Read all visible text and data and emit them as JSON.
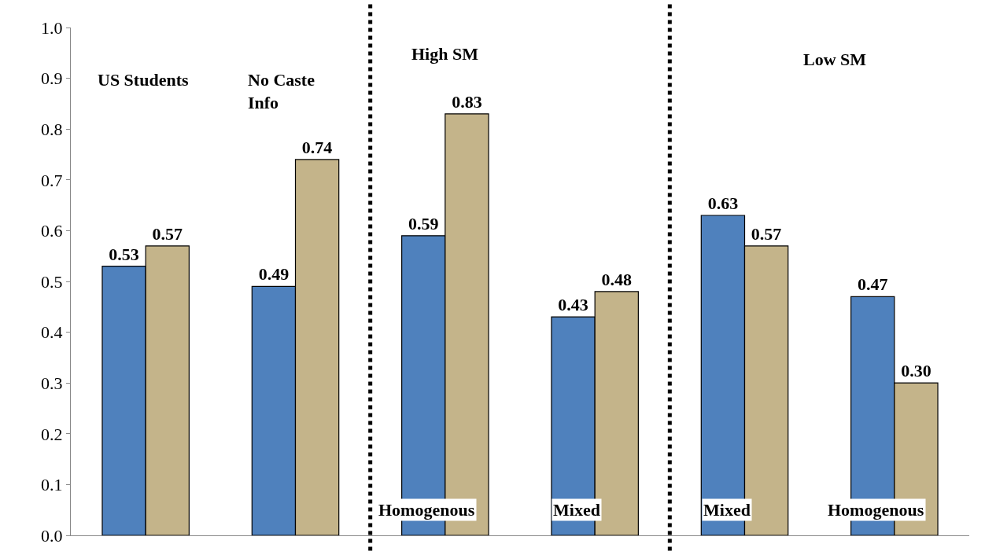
{
  "chart_data": {
    "type": "bar",
    "categories": [
      null,
      null,
      null,
      null,
      null,
      null
    ],
    "series": [
      {
        "color": "#4f81bd",
        "values": [
          0.53,
          0.49,
          0.59,
          0.43,
          0.63,
          0.47
        ],
        "value_labels": [
          "0.53",
          "0.49",
          "0.59",
          "0.43",
          "0.63",
          "0.47"
        ]
      },
      {
        "color": "#c4b48a",
        "values": [
          0.57,
          0.74,
          0.83,
          0.48,
          0.57,
          0.3
        ],
        "value_labels": [
          "0.57",
          "0.74",
          "0.83",
          "0.48",
          "0.57",
          "0.30"
        ]
      }
    ],
    "ylim": [
      0,
      1
    ],
    "yticks": [
      {
        "value": 0,
        "label": "0.0"
      },
      {
        "value": 0.1,
        "label": "0.1"
      },
      {
        "value": 0.2,
        "label": "0.2"
      },
      {
        "value": 0.3,
        "label": "0.3"
      },
      {
        "value": 0.4,
        "label": "0.4"
      },
      {
        "value": 0.5,
        "label": "0.5"
      },
      {
        "value": 0.6,
        "label": "0.6"
      },
      {
        "value": 0.7,
        "label": "0.7"
      },
      {
        "value": 0.8,
        "label": "0.8"
      },
      {
        "value": 0.9,
        "label": "0.9"
      },
      {
        "value": 1,
        "label": "1.0"
      }
    ],
    "grid": false,
    "annotations": [
      "US Students",
      "No Caste Info",
      "High SM",
      "Low SM",
      "Homogenous",
      "Mixed",
      "Mixed",
      "Homogenous"
    ]
  }
}
